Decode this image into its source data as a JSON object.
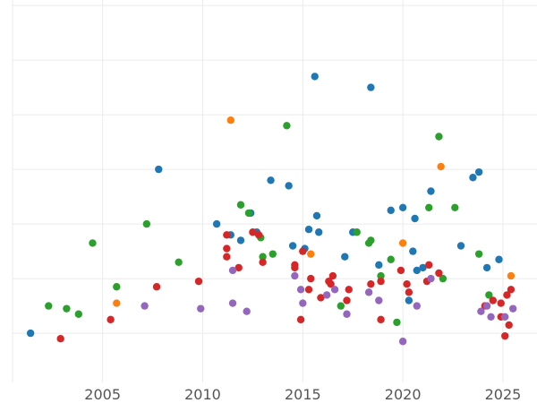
{
  "chart_data": {
    "type": "scatter",
    "title": "",
    "xlabel": "",
    "ylabel": "",
    "xlim": [
      2000.5,
      2026.7
    ],
    "ylim": [
      0.1,
      7.1
    ],
    "x_ticks": [
      2005,
      2010,
      2015,
      2020,
      2025
    ],
    "x_tick_labels": [
      "2005",
      "2010",
      "2015",
      "2020",
      "2025"
    ],
    "y_gridlines": [
      1,
      2,
      3,
      4,
      5,
      6,
      7
    ],
    "grid": true,
    "legend": "none",
    "series": [
      {
        "color": "#1f77b4",
        "points": [
          [
            2001.4,
            1.0
          ],
          [
            2007.8,
            4.0
          ],
          [
            2010.7,
            3.0
          ],
          [
            2011.4,
            2.8
          ],
          [
            2011.9,
            2.7
          ],
          [
            2012.4,
            3.2
          ],
          [
            2012.7,
            2.85
          ],
          [
            2013.4,
            3.8
          ],
          [
            2014.3,
            3.7
          ],
          [
            2014.5,
            2.6
          ],
          [
            2015.1,
            2.55
          ],
          [
            2015.3,
            2.9
          ],
          [
            2015.6,
            5.7
          ],
          [
            2015.7,
            3.15
          ],
          [
            2015.8,
            2.85
          ],
          [
            2017.1,
            2.4
          ],
          [
            2017.5,
            2.85
          ],
          [
            2018.4,
            5.5
          ],
          [
            2018.8,
            2.25
          ],
          [
            2019.4,
            3.25
          ],
          [
            2020.0,
            3.3
          ],
          [
            2020.3,
            1.6
          ],
          [
            2020.5,
            2.5
          ],
          [
            2020.6,
            3.1
          ],
          [
            2020.7,
            2.15
          ],
          [
            2021.0,
            2.2
          ],
          [
            2021.4,
            3.6
          ],
          [
            2022.9,
            2.6
          ],
          [
            2023.5,
            3.85
          ],
          [
            2023.8,
            3.95
          ],
          [
            2024.2,
            2.2
          ],
          [
            2024.8,
            2.35
          ]
        ]
      },
      {
        "color": "#ff7f0e",
        "points": [
          [
            2005.7,
            1.55
          ],
          [
            2011.4,
            4.9
          ],
          [
            2015.4,
            2.45
          ],
          [
            2020.0,
            2.65
          ],
          [
            2021.9,
            4.05
          ],
          [
            2025.4,
            2.05
          ]
        ]
      },
      {
        "color": "#2ca02c",
        "points": [
          [
            2002.3,
            1.5
          ],
          [
            2003.2,
            1.45
          ],
          [
            2003.8,
            1.35
          ],
          [
            2004.5,
            2.65
          ],
          [
            2005.7,
            1.85
          ],
          [
            2007.2,
            3.0
          ],
          [
            2008.8,
            2.3
          ],
          [
            2011.9,
            3.35
          ],
          [
            2012.3,
            3.2
          ],
          [
            2012.9,
            2.75
          ],
          [
            2013.0,
            2.4
          ],
          [
            2013.5,
            2.45
          ],
          [
            2014.2,
            4.8
          ],
          [
            2016.9,
            1.5
          ],
          [
            2017.7,
            2.85
          ],
          [
            2018.3,
            2.65
          ],
          [
            2018.4,
            2.7
          ],
          [
            2018.9,
            2.05
          ],
          [
            2019.7,
            1.2
          ],
          [
            2019.4,
            2.35
          ],
          [
            2021.3,
            3.3
          ],
          [
            2021.8,
            4.6
          ],
          [
            2022.0,
            2.0
          ],
          [
            2022.6,
            3.3
          ],
          [
            2023.8,
            2.45
          ],
          [
            2024.3,
            1.7
          ]
        ]
      },
      {
        "color": "#d62728",
        "points": [
          [
            2002.9,
            0.9
          ],
          [
            2005.4,
            1.25
          ],
          [
            2007.7,
            1.85
          ],
          [
            2009.8,
            1.95
          ],
          [
            2011.2,
            2.8
          ],
          [
            2011.2,
            2.55
          ],
          [
            2011.2,
            2.4
          ],
          [
            2011.8,
            2.2
          ],
          [
            2012.5,
            2.85
          ],
          [
            2012.8,
            2.8
          ],
          [
            2013.0,
            2.3
          ],
          [
            2014.6,
            2.2
          ],
          [
            2014.6,
            2.25
          ],
          [
            2015.0,
            2.5
          ],
          [
            2015.3,
            1.8
          ],
          [
            2015.4,
            2.0
          ],
          [
            2014.9,
            1.25
          ],
          [
            2015.9,
            1.65
          ],
          [
            2016.3,
            1.95
          ],
          [
            2016.5,
            2.05
          ],
          [
            2016.4,
            1.9
          ],
          [
            2017.2,
            1.6
          ],
          [
            2017.3,
            1.8
          ],
          [
            2018.4,
            1.9
          ],
          [
            2018.9,
            1.95
          ],
          [
            2018.9,
            1.25
          ],
          [
            2019.9,
            2.15
          ],
          [
            2020.2,
            1.9
          ],
          [
            2020.3,
            1.75
          ],
          [
            2021.2,
            1.95
          ],
          [
            2021.3,
            2.25
          ],
          [
            2021.8,
            2.1
          ],
          [
            2024.1,
            1.5
          ],
          [
            2024.5,
            1.6
          ],
          [
            2024.9,
            1.3
          ],
          [
            2024.9,
            1.55
          ],
          [
            2025.2,
            1.7
          ],
          [
            2025.3,
            1.15
          ],
          [
            2025.4,
            1.8
          ],
          [
            2025.1,
            0.95
          ]
        ]
      },
      {
        "color": "#9467bd",
        "points": [
          [
            2007.1,
            1.5
          ],
          [
            2009.9,
            1.45
          ],
          [
            2011.5,
            2.15
          ],
          [
            2011.5,
            1.55
          ],
          [
            2012.2,
            1.4
          ],
          [
            2014.6,
            2.05
          ],
          [
            2014.9,
            1.8
          ],
          [
            2015.0,
            1.55
          ],
          [
            2016.2,
            1.7
          ],
          [
            2016.6,
            1.8
          ],
          [
            2017.2,
            1.35
          ],
          [
            2018.3,
            1.75
          ],
          [
            2018.8,
            1.6
          ],
          [
            2020.0,
            0.85
          ],
          [
            2020.7,
            1.5
          ],
          [
            2021.4,
            2.0
          ],
          [
            2023.9,
            1.4
          ],
          [
            2024.2,
            1.5
          ],
          [
            2024.4,
            1.3
          ],
          [
            2025.1,
            1.3
          ],
          [
            2025.5,
            1.45
          ]
        ]
      }
    ]
  }
}
